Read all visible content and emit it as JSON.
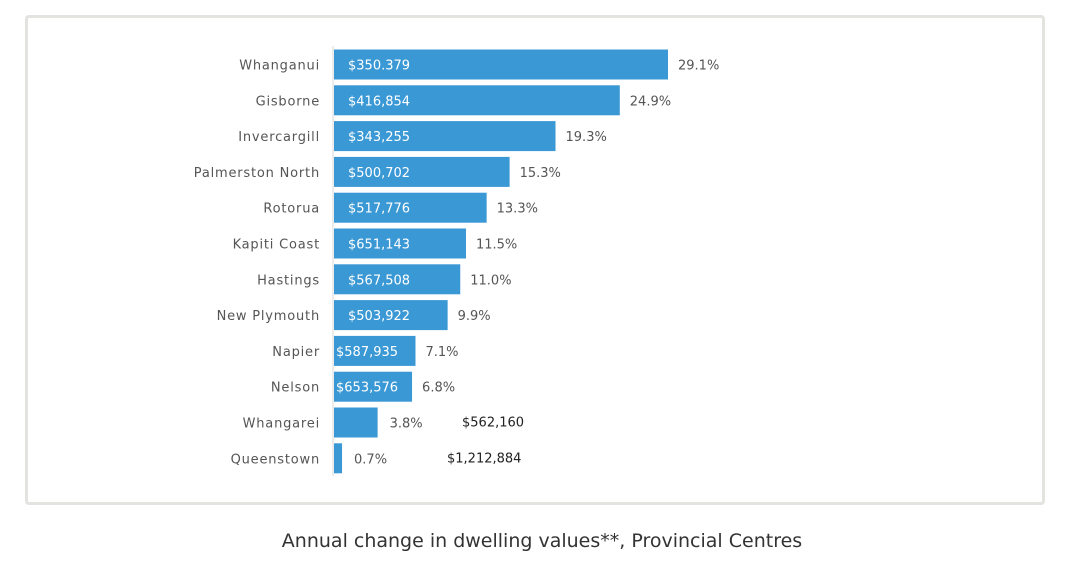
{
  "caption": "Annual change in dwelling values**, Provincial Centres",
  "colors": {
    "bar": "#3a98d5",
    "frame_border": "#e3e3e0"
  },
  "chart_data": {
    "type": "bar",
    "orientation": "horizontal",
    "title": "",
    "xlabel": "",
    "ylabel": "",
    "grid": false,
    "legend": "none",
    "xlim": [
      0,
      29.1
    ],
    "categories": [
      "Whanganui",
      "Gisborne",
      "Invercargill",
      "Palmerston North",
      "Rotorua",
      "Kapiti Coast",
      "Hastings",
      "New Plymouth",
      "Napier",
      "Nelson",
      "Whangarei",
      "Queenstown"
    ],
    "values": [
      29.1,
      24.9,
      19.3,
      15.3,
      13.3,
      11.5,
      11.0,
      9.9,
      7.1,
      6.8,
      3.8,
      0.7
    ],
    "percent_labels": [
      "29.1%",
      "24.9%",
      "19.3%",
      "15.3%",
      "13.3%",
      "11.5%",
      "11.0%",
      "9.9%",
      "7.1%",
      "6.8%",
      "3.8%",
      "0.7%"
    ],
    "value_labels": [
      "$350.379",
      "$416,854",
      "$343,255",
      "$500,702",
      "$517,776",
      "$651,143",
      "$567,508",
      "$503,922",
      "$587,935",
      "$653,576",
      "$562,160",
      "$1,212,884"
    ],
    "value_label_inside": [
      true,
      true,
      true,
      true,
      true,
      true,
      true,
      true,
      true,
      true,
      false,
      false
    ]
  }
}
